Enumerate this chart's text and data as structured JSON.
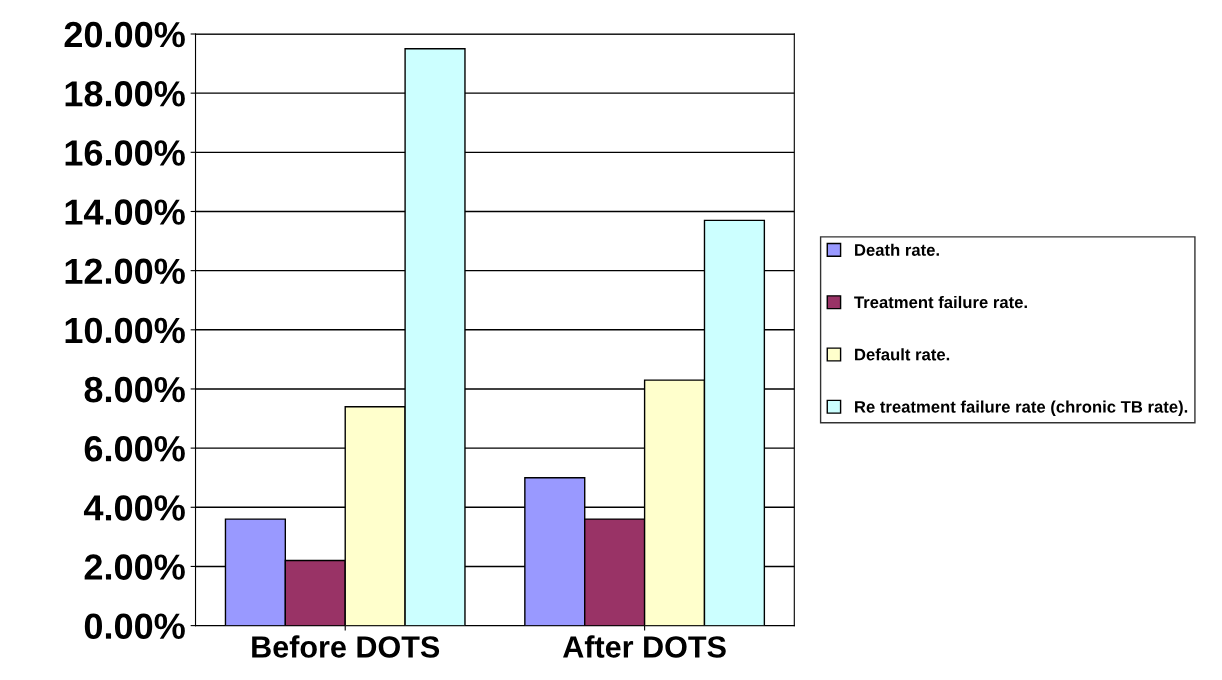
{
  "chart_data": {
    "type": "bar",
    "categories": [
      "Before DOTS",
      "After DOTS"
    ],
    "series": [
      {
        "name": "Death rate.",
        "color": "#9999ff",
        "values": [
          3.6,
          5.0
        ]
      },
      {
        "name": "Treatment failure rate.",
        "color": "#993366",
        "values": [
          2.2,
          3.6
        ]
      },
      {
        "name": "Default rate.",
        "color": "#ffffcc",
        "values": [
          7.4,
          8.3
        ]
      },
      {
        "name": "Re treatment failure rate (chronic TB rate).",
        "color": "#ccffff",
        "values": [
          19.5,
          13.7
        ]
      }
    ],
    "ylim": [
      0,
      20
    ],
    "yticks": [
      {
        "value": 0,
        "label": "0.00%"
      },
      {
        "value": 2,
        "label": "2.00%"
      },
      {
        "value": 4,
        "label": "4.00%"
      },
      {
        "value": 6,
        "label": "6.00%"
      },
      {
        "value": 8,
        "label": "8.00%"
      },
      {
        "value": 10,
        "label": "10.00%"
      },
      {
        "value": 12,
        "label": "12.00%"
      },
      {
        "value": 14,
        "label": "14.00%"
      },
      {
        "value": 16,
        "label": "16.00%"
      },
      {
        "value": 18,
        "label": "18.00%"
      },
      {
        "value": 20,
        "label": "20.00%"
      }
    ],
    "grid": "y",
    "legend": "right"
  }
}
